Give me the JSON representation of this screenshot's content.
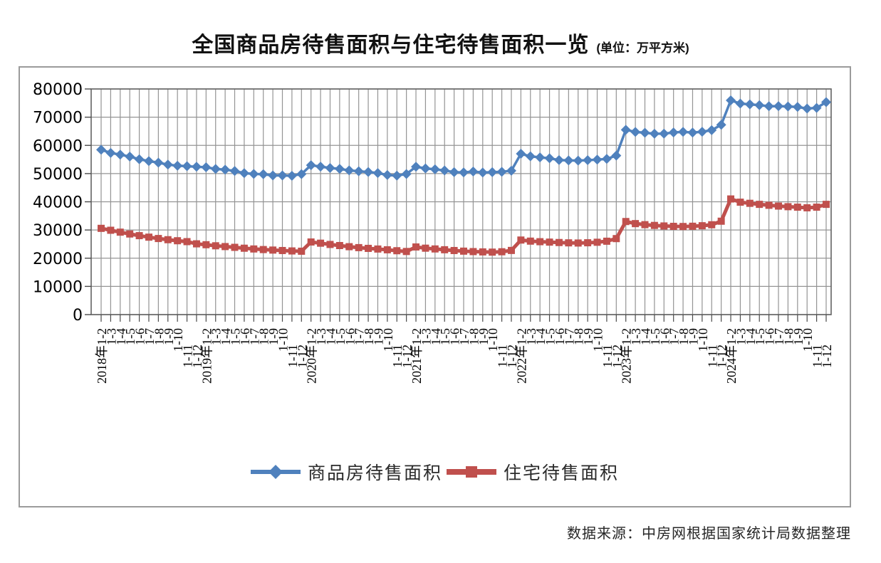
{
  "page": {
    "footer_source": "数据来源：中房网根据国家统计局数据整理"
  },
  "chart_data": {
    "type": "line",
    "title": "全国商品房待售面积与住宅待售面积一览",
    "unit_label": "(单位：万平方米)",
    "ylabel": "",
    "xlabel": "",
    "ylim": [
      0,
      80000
    ],
    "y_ticks": [
      0,
      10000,
      20000,
      30000,
      40000,
      50000,
      60000,
      70000,
      80000
    ],
    "grid": true,
    "legend_position": "bottom",
    "x_labels": [
      "2018年1-2",
      "1-3",
      "1-4",
      "1-5",
      "1-6",
      "1-7",
      "1-8",
      "1-9",
      "1-10",
      "1-11",
      "1-12",
      "2019年1-2",
      "1-3",
      "1-4",
      "1-5",
      "1-6",
      "1-7",
      "1-8",
      "1-9",
      "1-10",
      "1-11",
      "1-12",
      "2020年1-2",
      "1-3",
      "1-4",
      "1-5",
      "1-6",
      "1-7",
      "1-8",
      "1-9",
      "1-10",
      "1-11",
      "1-12",
      "2021年1-2",
      "1-3",
      "1-4",
      "1-5",
      "1-6",
      "1-7",
      "1-8",
      "1-9",
      "1-10",
      "1-11",
      "1-12",
      "2022年1-2",
      "1-3",
      "1-4",
      "1-5",
      "1-6",
      "1-7",
      "1-8",
      "1-9",
      "1-10",
      "1-11",
      "1-12",
      "2023年1-2",
      "1-3",
      "1-4",
      "1-5",
      "1-6",
      "1-7",
      "1-8",
      "1-9",
      "1-10",
      "1-11",
      "1-12",
      "2024年1-2",
      "1-3",
      "1-4",
      "1-5",
      "1-6",
      "1-7",
      "1-8",
      "1-9",
      "1-10",
      "1-11",
      "1-12"
    ],
    "series": [
      {
        "id": "commercial",
        "name": "商品房待售面积",
        "color": "#4F81BD",
        "marker": "diamond",
        "values": [
          58468,
          57329,
          56726,
          56010,
          55083,
          54428,
          53873,
          53191,
          52789,
          52627,
          52414,
          52251,
          51646,
          51380,
          50928,
          50162,
          49876,
          49784,
          49346,
          49323,
          49221,
          49821,
          52978,
          52466,
          51985,
          51668,
          51124,
          50815,
          50563,
          50199,
          49492,
          49287,
          49850,
          52425,
          51835,
          51511,
          51089,
          50510,
          50400,
          50738,
          50385,
          50494,
          50621,
          51023,
          57026,
          56113,
          55735,
          55433,
          54784,
          54655,
          54605,
          54767,
          54937,
          55203,
          56366,
          65528,
          64770,
          64487,
          64120,
          64159,
          64564,
          64795,
          64537,
          64835,
          65385,
          67295,
          75969,
          74833,
          74553,
          74256,
          73894,
          73926,
          73783,
          73631,
          73057,
          73286,
          75327
        ]
      },
      {
        "id": "residential",
        "name": "住宅待售面积",
        "color": "#C0504D",
        "marker": "square",
        "values": [
          30583,
          29905,
          29230,
          28580,
          27990,
          27460,
          26980,
          26560,
          26190,
          25870,
          25091,
          24780,
          24400,
          24120,
          23850,
          23540,
          23270,
          23060,
          22880,
          22720,
          22570,
          22473,
          25745,
          25320,
          24870,
          24480,
          24080,
          23750,
          23480,
          23250,
          22980,
          22650,
          22379,
          23982,
          23550,
          23280,
          23000,
          22720,
          22500,
          22340,
          22230,
          22150,
          22280,
          22750,
          26434,
          26050,
          25850,
          25700,
          25560,
          25440,
          25380,
          25470,
          25650,
          26020,
          26947,
          33000,
          32260,
          31890,
          31620,
          31430,
          31290,
          31240,
          31330,
          31510,
          31860,
          33119,
          41000,
          39860,
          39460,
          39090,
          38760,
          38480,
          38260,
          38090,
          37870,
          38090,
          39088
        ]
      }
    ]
  }
}
